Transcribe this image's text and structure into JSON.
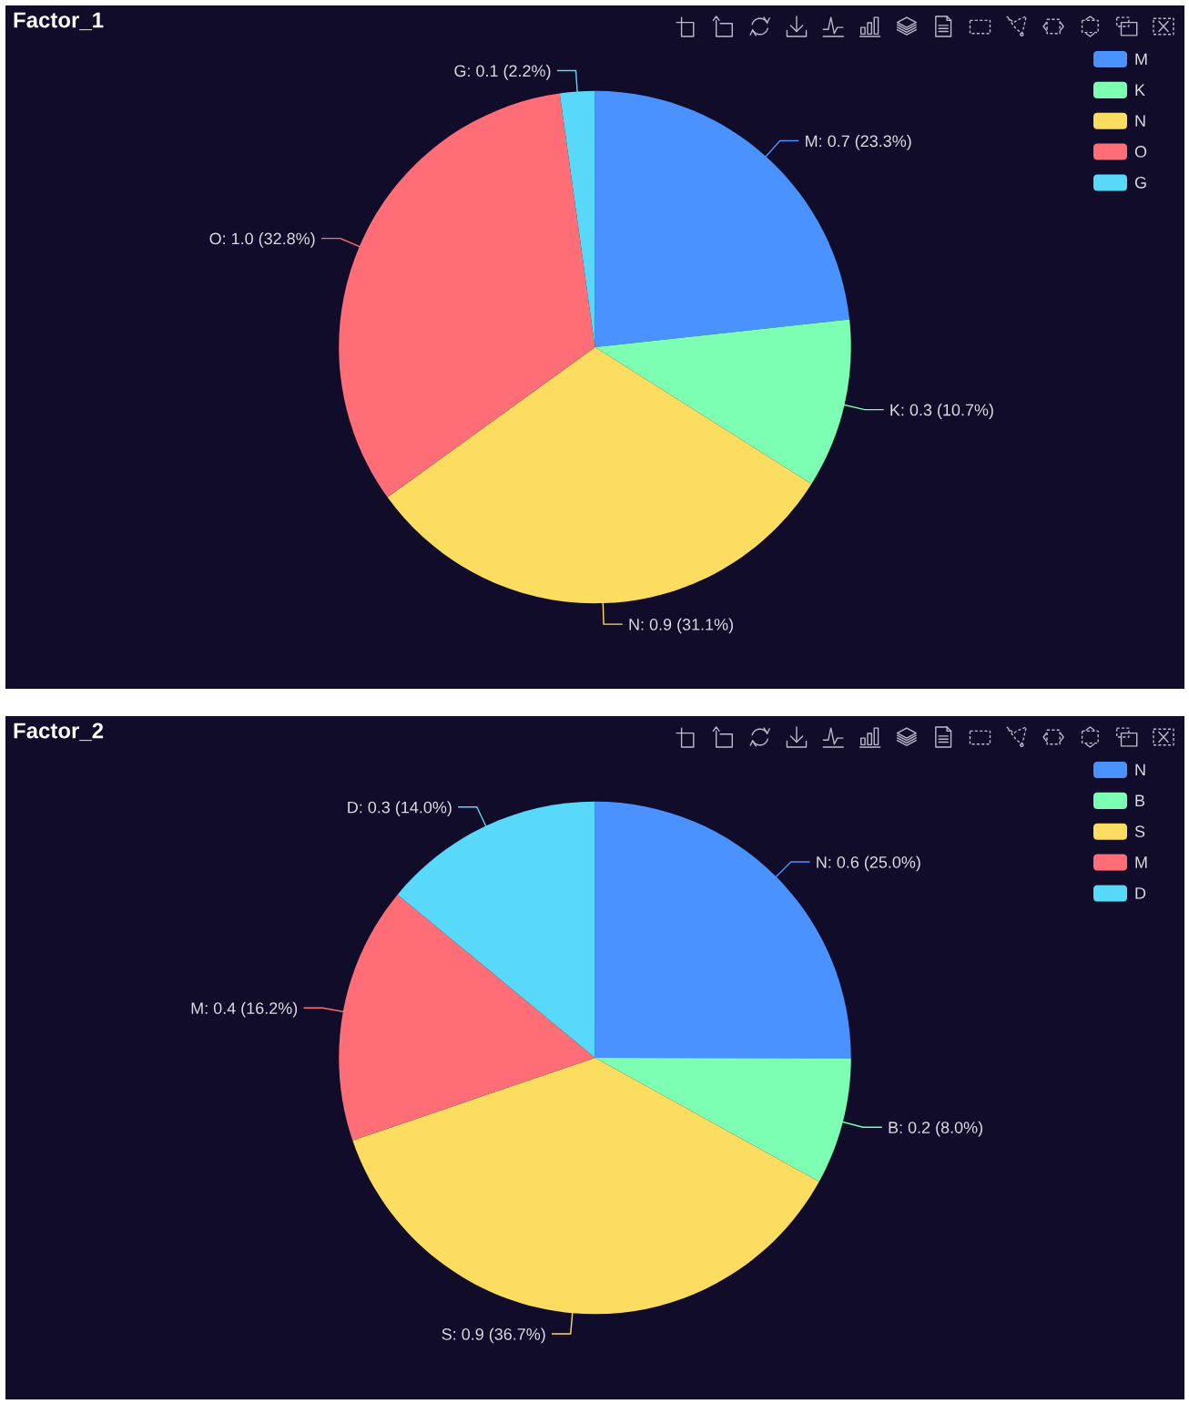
{
  "chart_data": [
    {
      "type": "pie",
      "title": "Factor_1",
      "categories": [
        "M",
        "K",
        "N",
        "O",
        "G"
      ],
      "values": [
        23.3,
        10.7,
        31.1,
        32.8,
        2.2
      ],
      "colors": [
        "#4992ff",
        "#7cffb2",
        "#fddd60",
        "#ff6e76",
        "#58d9f9"
      ],
      "value_labels": [
        "M: 0.7 (23.3%)",
        "K: 0.3 (10.7%)",
        "N: 0.9 (31.1%)",
        "O: 1.0 (32.8%)",
        "G: 0.1 (2.2%)"
      ],
      "legend": "top right"
    },
    {
      "type": "pie",
      "title": "Factor_2",
      "categories": [
        "N",
        "B",
        "S",
        "M",
        "D"
      ],
      "values": [
        25.0,
        8.0,
        36.7,
        16.2,
        14.0
      ],
      "colors": [
        "#4992ff",
        "#7cffb2",
        "#fddd60",
        "#ff6e76",
        "#58d9f9"
      ],
      "value_labels": [
        "N: 0.6 (25.0%)",
        "B: 0.2 (8.0%)",
        "S: 0.9 (36.7%)",
        "M: 0.4 (16.2%)",
        "D: 0.3 (14.0%)"
      ],
      "legend": "top right"
    }
  ]
}
